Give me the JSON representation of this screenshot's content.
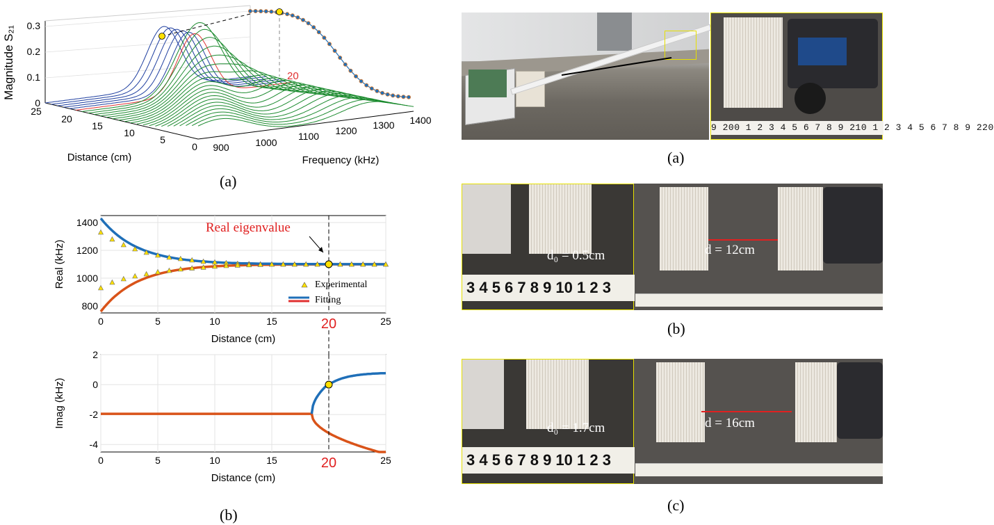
{
  "panel_labels": {
    "left_a": "(a)",
    "left_b": "(b)",
    "right_a": "(a)",
    "right_b": "(b)",
    "right_c": "(c)"
  },
  "plot3d": {
    "zlabel": "Magnitude S₂₁",
    "xlabel": "Distance (cm)",
    "ylabel": "Frequency (kHz)",
    "z_ticks": [
      "0",
      "0.1",
      "0.2",
      "0.3"
    ],
    "distance_ticks": [
      "25",
      "20",
      "15",
      "10",
      "5",
      "0"
    ],
    "frequency_ticks": [
      "900",
      "1000",
      "1100",
      "1200",
      "1300",
      "1400"
    ],
    "marker_label": "20",
    "colors": {
      "blue": "#1f3fa0",
      "red": "#e03030",
      "green": "#1b8a2e",
      "marker": "#ffe100"
    }
  },
  "chart_data": [
    {
      "type": "scatter",
      "title": "",
      "xlabel": "Distance (cm)",
      "ylabel": "Real (kHz)",
      "xlim": [
        0,
        25
      ],
      "ylim": [
        750,
        1450
      ],
      "xticks": [
        "0",
        "5",
        "10",
        "15",
        "20",
        "25"
      ],
      "yticks": [
        "800",
        "1000",
        "1200",
        "1400"
      ],
      "annotation": "Real eigenvalue",
      "highlight_x": "20",
      "legend": {
        "placement": "bottom-right",
        "entries": [
          "Experimental",
          "Fitting"
        ]
      },
      "series": [
        {
          "name": "Experimental",
          "x": [
            0,
            1,
            2,
            3,
            4,
            5,
            6,
            7,
            8,
            9,
            10,
            11,
            12,
            13,
            14,
            15,
            16,
            17,
            18,
            19,
            20,
            21,
            22,
            23,
            24,
            25
          ],
          "upper": [
            1330,
            1280,
            1240,
            1210,
            1185,
            1165,
            1150,
            1140,
            1130,
            1120,
            1115,
            1110,
            1105,
            1103,
            1101,
            1100,
            1100,
            1100,
            1100,
            1100,
            1100,
            1100,
            1100,
            1100,
            1100,
            1100
          ],
          "lower": [
            930,
            970,
            995,
            1015,
            1030,
            1045,
            1055,
            1065,
            1072,
            1078,
            1085,
            1090,
            1093,
            1096,
            1098,
            1100,
            1100,
            1100,
            1100,
            1100,
            1100,
            1100,
            1100,
            1100,
            1100,
            1100
          ]
        },
        {
          "name": "Fitting",
          "colors": [
            "#1f6fb8",
            "#d95319"
          ]
        }
      ]
    },
    {
      "type": "line",
      "title": "",
      "xlabel": "Distance (cm)",
      "ylabel": "Imag (kHz)",
      "xlim": [
        0,
        25
      ],
      "ylim": [
        -4.5,
        2
      ],
      "xticks": [
        "0",
        "5",
        "10",
        "15",
        "20",
        "25"
      ],
      "yticks": [
        "2",
        "0",
        "-2",
        "-4"
      ],
      "highlight_x": "20",
      "exceptional_point": {
        "x": 20,
        "y": 0
      },
      "series": [
        {
          "name": "",
          "color": "#d95319",
          "x": [
            0,
            18.5
          ],
          "y": [
            -1.95,
            -1.95
          ]
        },
        {
          "name": "",
          "color": "#1f6fb8",
          "x": [
            19.2,
            20,
            21,
            22,
            23,
            24,
            25
          ],
          "y": [
            -1.0,
            0,
            0.35,
            0.55,
            0.68,
            0.76,
            0.8
          ]
        },
        {
          "name": "",
          "color": "#d95319",
          "x": [
            18.5,
            19,
            20,
            21,
            22,
            23,
            24,
            25
          ],
          "y": [
            -1.95,
            -2.8,
            -3.5,
            -3.95,
            -4.2,
            -4.35,
            -4.45,
            -4.5
          ]
        }
      ]
    }
  ],
  "photos": {
    "b_d0": "d₀ = 0.5cm",
    "b_d": "d = 12cm",
    "c_d0": "d₀ = 1.7cm",
    "c_d": "d = 16cm",
    "tape_inset": "3 4 5 6 7 8 9 10 1 2 3",
    "tape_main": "9 200 1 2 3 4 5 6 7 8 9 210 1 2 3 4 5 6 7 8 9 220"
  }
}
